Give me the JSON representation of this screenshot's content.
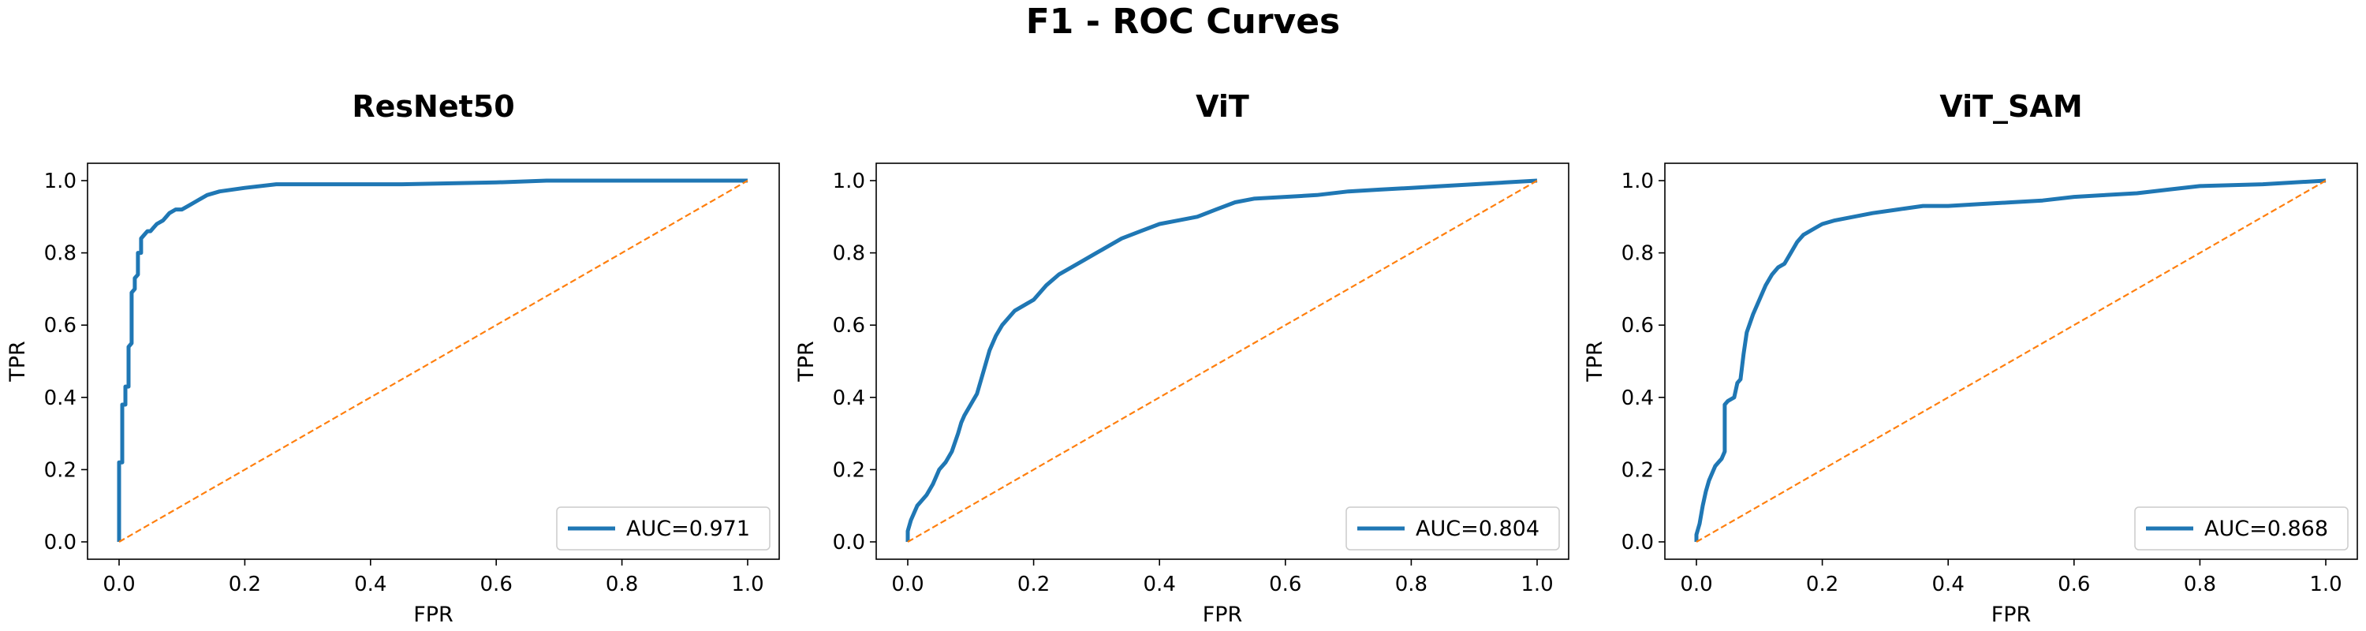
{
  "figure": {
    "title": "F1 - ROC Curves"
  },
  "chart_data": [
    {
      "type": "line",
      "title": "ResNet50",
      "xlabel": "FPR",
      "ylabel": "TPR",
      "xlim": [
        0,
        1
      ],
      "ylim": [
        0,
        1
      ],
      "xticks": [
        "0.0",
        "0.2",
        "0.4",
        "0.6",
        "0.8",
        "1.0"
      ],
      "yticks": [
        "0.0",
        "0.2",
        "0.4",
        "0.6",
        "0.8",
        "1.0"
      ],
      "grid": false,
      "legend_position": "lower right",
      "series": [
        {
          "name": "AUC=0.971",
          "color": "#1f77b4",
          "style": "solid",
          "x": [
            0,
            0,
            0.005,
            0.005,
            0.01,
            0.01,
            0.015,
            0.015,
            0.02,
            0.02,
            0.025,
            0.025,
            0.03,
            0.03,
            0.035,
            0.035,
            0.04,
            0.045,
            0.05,
            0.055,
            0.06,
            0.07,
            0.08,
            0.09,
            0.1,
            0.11,
            0.12,
            0.14,
            0.16,
            0.2,
            0.25,
            0.33,
            0.45,
            0.6,
            0.68,
            0.75,
            0.85,
            0.95,
            1
          ],
          "y": [
            0,
            0.22,
            0.22,
            0.38,
            0.38,
            0.43,
            0.43,
            0.54,
            0.55,
            0.69,
            0.7,
            0.73,
            0.74,
            0.8,
            0.8,
            0.84,
            0.85,
            0.86,
            0.86,
            0.87,
            0.88,
            0.89,
            0.91,
            0.92,
            0.92,
            0.93,
            0.94,
            0.96,
            0.97,
            0.98,
            0.99,
            0.99,
            0.99,
            0.995,
            1,
            1,
            1,
            1,
            1
          ]
        },
        {
          "name": "",
          "color": "#ff7f0e",
          "style": "dashed",
          "x": [
            0,
            1
          ],
          "y": [
            0,
            1
          ]
        }
      ]
    },
    {
      "type": "line",
      "title": "ViT",
      "xlabel": "FPR",
      "ylabel": "TPR",
      "xlim": [
        0,
        1
      ],
      "ylim": [
        0,
        1
      ],
      "xticks": [
        "0.0",
        "0.2",
        "0.4",
        "0.6",
        "0.8",
        "1.0"
      ],
      "yticks": [
        "0.0",
        "0.2",
        "0.4",
        "0.6",
        "0.8",
        "1.0"
      ],
      "grid": false,
      "legend_position": "lower right",
      "series": [
        {
          "name": "AUC=0.804",
          "color": "#1f77b4",
          "style": "solid",
          "x": [
            0,
            0,
            0.005,
            0.01,
            0.015,
            0.02,
            0.03,
            0.04,
            0.05,
            0.06,
            0.07,
            0.08,
            0.085,
            0.09,
            0.1,
            0.11,
            0.12,
            0.13,
            0.14,
            0.15,
            0.17,
            0.19,
            0.2,
            0.22,
            0.24,
            0.26,
            0.28,
            0.3,
            0.32,
            0.34,
            0.37,
            0.4,
            0.43,
            0.46,
            0.49,
            0.52,
            0.55,
            0.6,
            0.65,
            0.7,
            0.75,
            0.8,
            0.85,
            0.9,
            0.95,
            1
          ],
          "y": [
            0,
            0.03,
            0.06,
            0.08,
            0.1,
            0.11,
            0.13,
            0.16,
            0.2,
            0.22,
            0.25,
            0.3,
            0.33,
            0.35,
            0.38,
            0.41,
            0.47,
            0.53,
            0.57,
            0.6,
            0.64,
            0.66,
            0.67,
            0.71,
            0.74,
            0.76,
            0.78,
            0.8,
            0.82,
            0.84,
            0.86,
            0.88,
            0.89,
            0.9,
            0.92,
            0.94,
            0.95,
            0.955,
            0.96,
            0.97,
            0.975,
            0.98,
            0.985,
            0.99,
            0.995,
            1
          ]
        },
        {
          "name": "",
          "color": "#ff7f0e",
          "style": "dashed",
          "x": [
            0,
            1
          ],
          "y": [
            0,
            1
          ]
        }
      ]
    },
    {
      "type": "line",
      "title": "ViT_SAM",
      "xlabel": "FPR",
      "ylabel": "TPR",
      "xlim": [
        0,
        1
      ],
      "ylim": [
        0,
        1
      ],
      "xticks": [
        "0.0",
        "0.2",
        "0.4",
        "0.6",
        "0.8",
        "1.0"
      ],
      "yticks": [
        "0.0",
        "0.2",
        "0.4",
        "0.6",
        "0.8",
        "1.0"
      ],
      "grid": false,
      "legend_position": "lower right",
      "series": [
        {
          "name": "AUC=0.868",
          "color": "#1f77b4",
          "style": "solid",
          "x": [
            0,
            0,
            0.005,
            0.01,
            0.015,
            0.02,
            0.025,
            0.03,
            0.035,
            0.04,
            0.045,
            0.045,
            0.05,
            0.06,
            0.065,
            0.07,
            0.075,
            0.08,
            0.09,
            0.1,
            0.11,
            0.12,
            0.13,
            0.14,
            0.15,
            0.16,
            0.17,
            0.18,
            0.19,
            0.2,
            0.22,
            0.25,
            0.28,
            0.32,
            0.36,
            0.4,
            0.45,
            0.5,
            0.55,
            0.6,
            0.65,
            0.7,
            0.75,
            0.8,
            0.9,
            1
          ],
          "y": [
            0,
            0.02,
            0.05,
            0.1,
            0.14,
            0.17,
            0.19,
            0.21,
            0.22,
            0.23,
            0.25,
            0.38,
            0.39,
            0.4,
            0.44,
            0.45,
            0.52,
            0.58,
            0.63,
            0.67,
            0.71,
            0.74,
            0.76,
            0.77,
            0.8,
            0.83,
            0.85,
            0.86,
            0.87,
            0.88,
            0.89,
            0.9,
            0.91,
            0.92,
            0.93,
            0.93,
            0.935,
            0.94,
            0.945,
            0.955,
            0.96,
            0.965,
            0.975,
            0.985,
            0.99,
            1
          ]
        },
        {
          "name": "",
          "color": "#ff7f0e",
          "style": "dashed",
          "x": [
            0,
            1
          ],
          "y": [
            0,
            1
          ]
        }
      ]
    }
  ]
}
